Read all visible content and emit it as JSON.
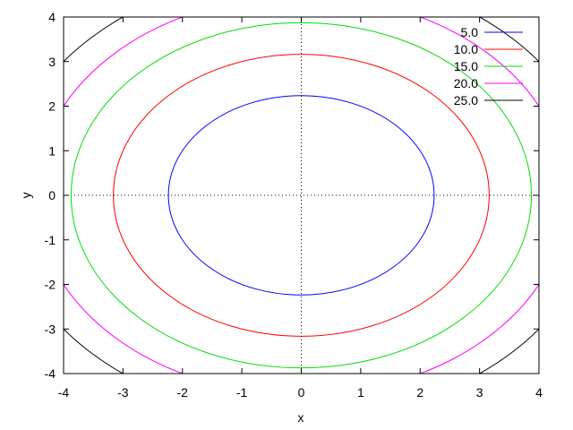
{
  "chart_data": {
    "type": "line",
    "xlabel": "x",
    "ylabel": "y",
    "xlim": [
      -4,
      4
    ],
    "ylim": [
      -4,
      4
    ],
    "x_ticks": [
      "-4",
      "-3",
      "-2",
      "-1",
      "0",
      "1",
      "2",
      "3",
      "4"
    ],
    "y_ticks": [
      "-4",
      "-3",
      "-2",
      "-1",
      "0",
      "1",
      "2",
      "3",
      "4"
    ],
    "zero_axes": "dotted",
    "grid": false,
    "legend_position": "top-right",
    "contour_function": "x^2 + y^2",
    "series": [
      {
        "name": "5.0",
        "level": 5,
        "color": "#0000ff"
      },
      {
        "name": "10.0",
        "level": 10,
        "color": "#ff0000"
      },
      {
        "name": "15.0",
        "level": 15,
        "color": "#00dd00"
      },
      {
        "name": "20.0",
        "level": 20,
        "color": "#ff00ff"
      },
      {
        "name": "25.0",
        "level": 25,
        "color": "#000000"
      }
    ]
  }
}
